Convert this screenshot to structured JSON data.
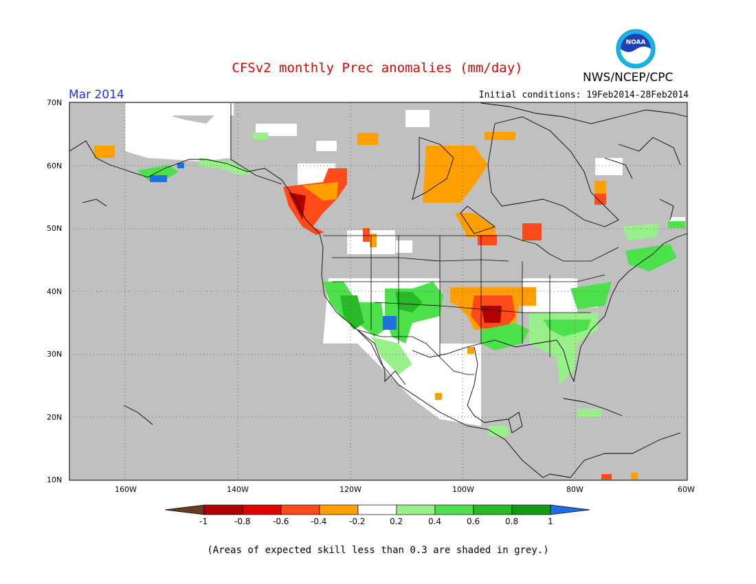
{
  "header": {
    "title": "CFSv2 monthly Prec anomalies (mm/day)",
    "organization": "NWS/NCEP/CPC",
    "logo_text": "NOAA",
    "target_month": "Mar 2014",
    "initial_conditions": "Initial conditions: 19Feb2014-28Feb2014"
  },
  "map": {
    "projection": "lat-lon",
    "lon_range": [
      -170,
      -60
    ],
    "lat_range": [
      10,
      70
    ],
    "grid": true,
    "land_color": "#ffffff",
    "low_skill_color": "#c0c0c0",
    "lat_labels": [
      "70N",
      "60N",
      "50N",
      "40N",
      "30N",
      "20N",
      "10N"
    ],
    "lon_labels": [
      "160W",
      "140W",
      "120W",
      "100W",
      "80W",
      "60W"
    ]
  },
  "colorbar": {
    "tick_labels": [
      "-1",
      "-0.8",
      "-0.6",
      "-0.4",
      "-0.2",
      "0.2",
      "0.4",
      "0.6",
      "0.8",
      "1"
    ],
    "colors": [
      "#6b3a23",
      "#b00000",
      "#e00000",
      "#ff4a1a",
      "#ffa000",
      "#ffffff",
      "#99f08a",
      "#4ce04a",
      "#28b828",
      "#139a13",
      "#1f6fe0"
    ]
  },
  "footer": {
    "note": "(Areas of expected skill less than 0.3 are shaded in grey.)"
  }
}
